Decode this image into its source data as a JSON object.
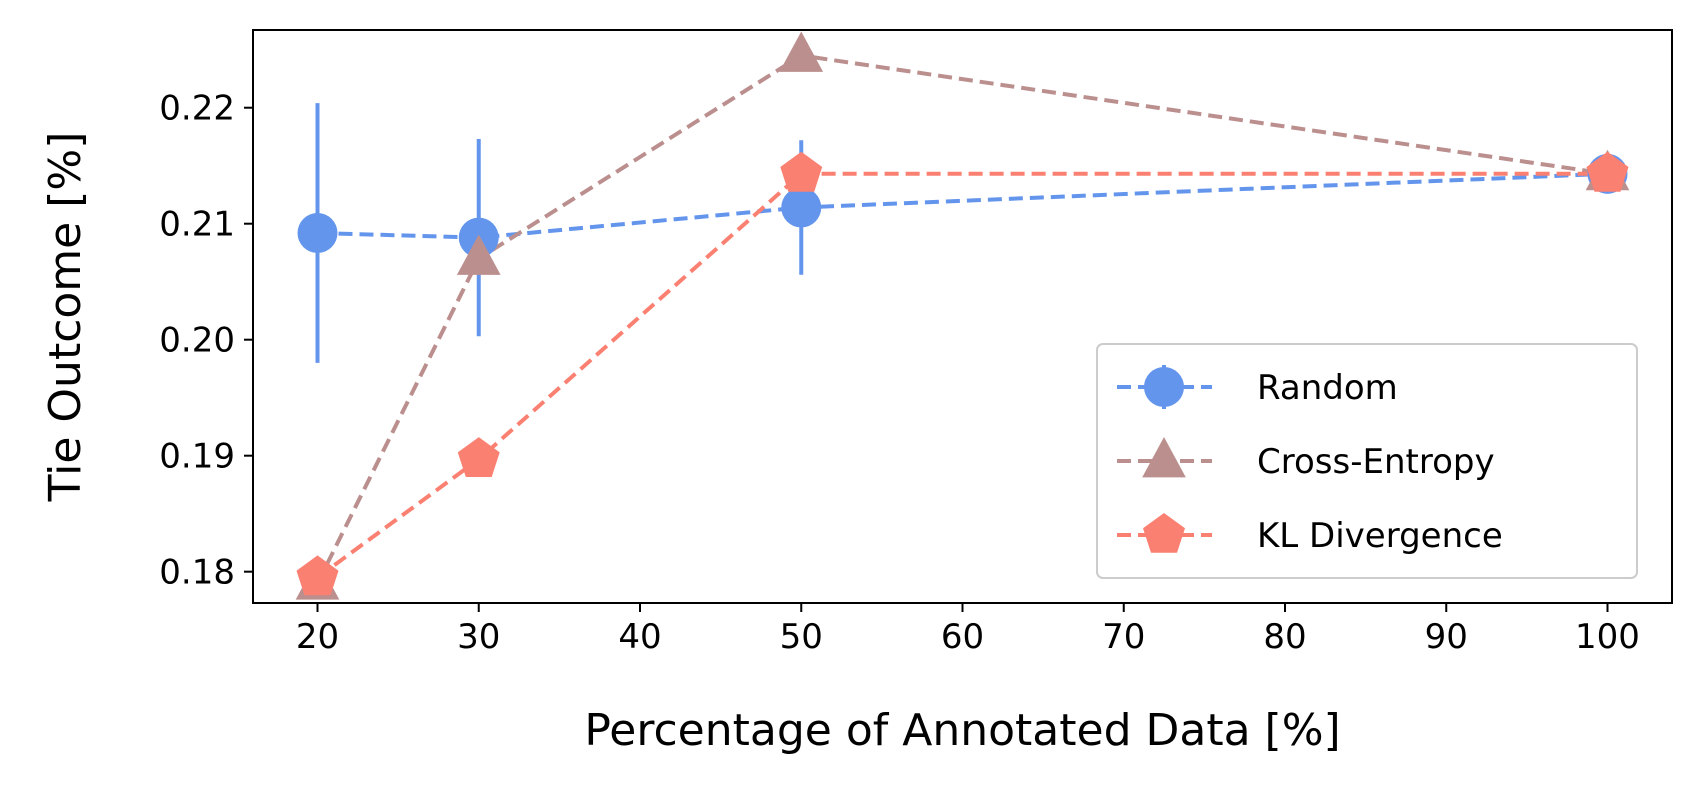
{
  "chart_data": {
    "type": "line",
    "xlabel": "Percentage of Annotated Data [%]",
    "ylabel": "Tie Outcome [%]",
    "xlim": [
      16,
      104
    ],
    "ylim": [
      0.1773,
      0.2267
    ],
    "xticks": [
      20,
      30,
      40,
      50,
      60,
      70,
      80,
      90,
      100
    ],
    "xtick_labels": [
      "20",
      "30",
      "40",
      "50",
      "60",
      "70",
      "80",
      "90",
      "100"
    ],
    "yticks": [
      0.18,
      0.19,
      0.2,
      0.21,
      0.22
    ],
    "ytick_labels": [
      "0.18",
      "0.19",
      "0.20",
      "0.21",
      "0.22"
    ],
    "grid": false,
    "legend_position": "lower-right",
    "x": [
      20,
      30,
      50,
      100
    ],
    "series": [
      {
        "name": "Random",
        "values": [
          0.2092,
          0.2088,
          0.2114,
          0.2143
        ],
        "yerr": [
          0.0112,
          0.0085,
          0.0058,
          0.0
        ],
        "color": "#6495ED",
        "marker": "circle",
        "linestyle": "dashed"
      },
      {
        "name": "Cross-Entropy",
        "values": [
          0.179,
          0.207,
          0.2245,
          0.2143
        ],
        "color": "#BC8F8F",
        "marker": "triangle",
        "linestyle": "dashed"
      },
      {
        "name": "KL Divergence",
        "values": [
          0.1795,
          0.1897,
          0.2143,
          0.2143
        ],
        "color": "#FA8072",
        "marker": "pentagon",
        "linestyle": "dashed"
      }
    ]
  }
}
